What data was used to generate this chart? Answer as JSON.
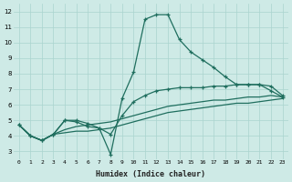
{
  "xlabel": "Humidex (Indice chaleur)",
  "ylabel": "",
  "bg_color": "#ceeae6",
  "grid_color": "#aad4ce",
  "line_color": "#1f6e5e",
  "xlim": [
    -0.5,
    23.5
  ],
  "ylim": [
    2.5,
    12.5
  ],
  "xticks": [
    0,
    1,
    2,
    3,
    4,
    5,
    6,
    7,
    8,
    9,
    10,
    11,
    12,
    13,
    14,
    15,
    16,
    17,
    18,
    19,
    20,
    21,
    22,
    23
  ],
  "yticks": [
    3,
    4,
    5,
    6,
    7,
    8,
    9,
    10,
    11,
    12
  ],
  "line1_x": [
    0,
    1,
    2,
    3,
    4,
    5,
    6,
    7,
    8,
    9,
    10,
    11,
    12,
    13,
    14,
    15,
    16,
    17,
    18,
    19,
    20,
    21,
    22,
    23
  ],
  "line1_y": [
    4.7,
    4.0,
    3.7,
    4.1,
    5.0,
    5.0,
    4.8,
    4.5,
    2.8,
    6.4,
    8.1,
    11.5,
    11.8,
    11.8,
    10.2,
    9.4,
    8.9,
    8.4,
    7.8,
    7.3,
    7.3,
    7.3,
    6.9,
    6.5
  ],
  "line2_x": [
    0,
    1,
    2,
    3,
    4,
    5,
    6,
    7,
    8,
    9,
    10,
    11,
    12,
    13,
    14,
    15,
    16,
    17,
    18,
    19,
    20,
    21,
    22,
    23
  ],
  "line2_y": [
    4.7,
    4.0,
    3.7,
    4.1,
    4.2,
    4.3,
    4.3,
    4.4,
    4.5,
    4.7,
    4.9,
    5.1,
    5.3,
    5.5,
    5.6,
    5.7,
    5.8,
    5.9,
    6.0,
    6.1,
    6.1,
    6.2,
    6.3,
    6.4
  ],
  "line3_x": [
    0,
    1,
    2,
    3,
    4,
    5,
    6,
    7,
    8,
    9,
    10,
    11,
    12,
    13,
    14,
    15,
    16,
    17,
    18,
    19,
    20,
    21,
    22,
    23
  ],
  "line3_y": [
    4.7,
    4.0,
    3.7,
    4.1,
    4.4,
    4.6,
    4.7,
    4.8,
    4.9,
    5.1,
    5.3,
    5.5,
    5.7,
    5.9,
    6.0,
    6.1,
    6.2,
    6.3,
    6.3,
    6.4,
    6.5,
    6.5,
    6.6,
    6.5
  ],
  "line4_x": [
    0,
    1,
    2,
    3,
    4,
    5,
    6,
    7,
    8,
    9,
    10,
    11,
    12,
    13,
    14,
    15,
    16,
    17,
    18,
    19,
    20,
    21,
    22,
    23
  ],
  "line4_y": [
    4.7,
    4.0,
    3.7,
    4.1,
    5.0,
    4.9,
    4.6,
    4.5,
    4.1,
    5.3,
    6.2,
    6.6,
    6.9,
    7.0,
    7.1,
    7.1,
    7.1,
    7.2,
    7.2,
    7.3,
    7.3,
    7.3,
    7.2,
    6.6
  ]
}
